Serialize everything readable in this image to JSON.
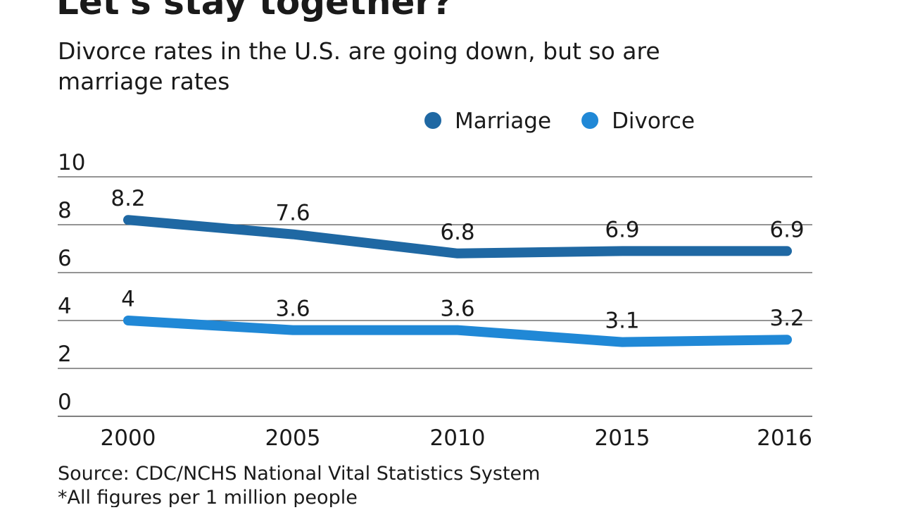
{
  "chart_data": {
    "type": "line",
    "title": "Let's stay together?",
    "subtitle": [
      "Divorce rates in the U.S. are going down, but so are",
      "marriage rates"
    ],
    "categories": [
      "2000",
      "2005",
      "2010",
      "2015",
      "2016"
    ],
    "series": [
      {
        "name": "Marriage",
        "color": "#1f68a3",
        "values": [
          8.2,
          7.6,
          6.8,
          6.9,
          6.9
        ]
      },
      {
        "name": "Divorce",
        "color": "#2088d6",
        "values": [
          4,
          3.6,
          3.6,
          3.1,
          3.2
        ]
      }
    ],
    "ylim": [
      0,
      10
    ],
    "yticks": [
      0,
      2,
      4,
      6,
      8,
      10
    ],
    "grid": true,
    "source": "Source: CDC/NCHS National Vital Statistics System",
    "note": "*All figures per 1 million people"
  }
}
